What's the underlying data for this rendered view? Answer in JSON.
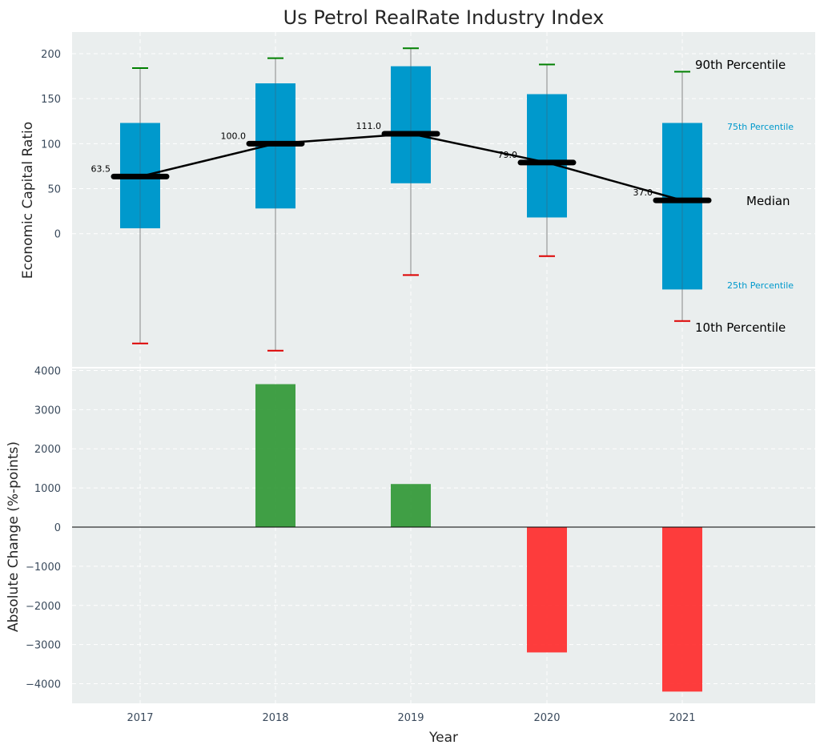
{
  "chart_data": [
    {
      "type": "box",
      "title": "Us Petrol RealRate Industry Index",
      "ylabel": "Economic Capital Ratio",
      "ylim": [
        -148,
        224
      ],
      "yticks": [
        0,
        50,
        100,
        150,
        200
      ],
      "categories": [
        "2017",
        "2018",
        "2019",
        "2020",
        "2021"
      ],
      "boxes": [
        {
          "year": "2017",
          "p10": -122,
          "p25": 6,
          "median": 63.5,
          "p75": 123,
          "p90": 184,
          "median_label": "63.5"
        },
        {
          "year": "2018",
          "p10": -130,
          "p25": 28,
          "median": 100.0,
          "p75": 167,
          "p90": 195,
          "median_label": "100.0"
        },
        {
          "year": "2019",
          "p10": -46,
          "p25": 56,
          "median": 111.0,
          "p75": 186,
          "p90": 206,
          "median_label": "111.0"
        },
        {
          "year": "2020",
          "p10": -25,
          "p25": 18,
          "median": 79.0,
          "p75": 155,
          "p90": 188,
          "median_label": "79.0"
        },
        {
          "year": "2021",
          "p10": -97,
          "p25": -62,
          "median": 37.0,
          "p75": 123,
          "p90": 180,
          "median_label": "37.0"
        }
      ],
      "annotations": {
        "p90": "90th Percentile",
        "p75": "75th Percentile",
        "median": "Median",
        "p25": "25th Percentile",
        "p10": "10th Percentile"
      },
      "colors": {
        "box": "#0099cc",
        "p90_cap": "#008000",
        "p10_cap": "#dd0000",
        "median": "#000000",
        "whisker": "#888888"
      },
      "grid": true
    },
    {
      "type": "bar",
      "ylabel": "Absolute Change (%-points)",
      "xlabel": "Year",
      "ylim": [
        -4500,
        4050
      ],
      "yticks": [
        -4000,
        -3000,
        -2000,
        -1000,
        0,
        1000,
        2000,
        3000,
        4000
      ],
      "ytick_labels": [
        "−4000",
        "−3000",
        "−2000",
        "−1000",
        "0",
        "1000",
        "2000",
        "3000",
        "4000"
      ],
      "categories": [
        "2017",
        "2018",
        "2019",
        "2020",
        "2021"
      ],
      "values": [
        0,
        3650,
        1100,
        -3200,
        -4200
      ],
      "colors": {
        "positive": "#2e9632",
        "negative": "#ff2828"
      },
      "grid": true
    }
  ]
}
